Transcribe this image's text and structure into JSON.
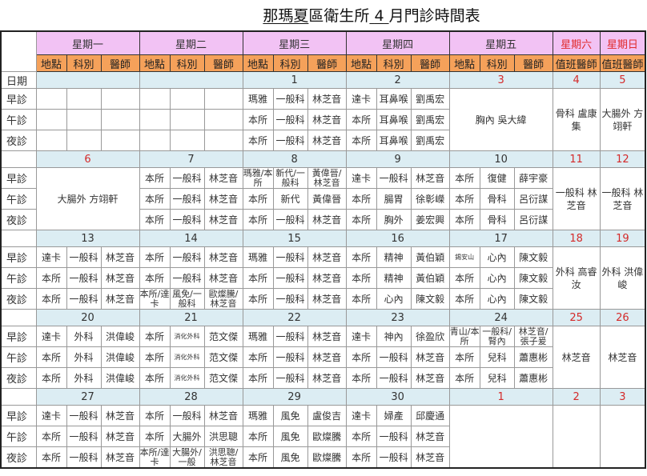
{
  "title": {
    "prefix": "那瑪夏",
    "mid": "區衛生所",
    "month": "4",
    "suffix": "月門診時間表"
  },
  "colors": {
    "day_header": "#f2c2f4",
    "sub_header": "#f5a15a",
    "date_row": "#dcedf3",
    "weekend_red": "#e02b2b"
  },
  "days": [
    {
      "label": "星期一",
      "weekend": false
    },
    {
      "label": "星期二",
      "weekend": false
    },
    {
      "label": "星期三",
      "weekend": false
    },
    {
      "label": "星期四",
      "weekend": false
    },
    {
      "label": "星期五",
      "weekend": false
    },
    {
      "label": "星期六",
      "weekend": true
    },
    {
      "label": "星期日",
      "weekend": true
    }
  ],
  "sub_headers": {
    "location": "地點",
    "dept": "科別",
    "doctor": "醫師",
    "duty": "值班醫師"
  },
  "row_labels": {
    "date": "日期",
    "slots": [
      "早診",
      "午診",
      "夜診"
    ]
  },
  "weeks": [
    {
      "days": [
        {
          "date": "",
          "slots": [
            [
              "",
              "",
              ""
            ],
            [
              "",
              "",
              ""
            ],
            [
              "",
              "",
              ""
            ]
          ]
        },
        {
          "date": "",
          "slots": [
            [
              "",
              "",
              ""
            ],
            [
              "",
              "",
              ""
            ],
            [
              "",
              "",
              ""
            ]
          ]
        },
        {
          "date": "1",
          "slots": [
            [
              "瑪雅",
              "一般科",
              "林芝音"
            ],
            [
              "本所",
              "一般科",
              "林芝音"
            ],
            [
              "本所",
              "一般科",
              "林芝音"
            ]
          ]
        },
        {
          "date": "2",
          "slots": [
            [
              "達卡",
              "耳鼻喉",
              "劉禹宏"
            ],
            [
              "本所",
              "耳鼻喉",
              "劉禹宏"
            ],
            [
              "本所",
              "耳鼻喉",
              "劉禹宏"
            ]
          ]
        },
        {
          "date": "3",
          "red": true,
          "merged": "胸內 吳大緯"
        },
        {
          "date": "4",
          "red": true,
          "merged": "骨科 盧康集"
        },
        {
          "date": "5",
          "red": true,
          "merged": "大腸外 方翊軒"
        }
      ]
    },
    {
      "days": [
        {
          "date": "6",
          "red": true,
          "merged": "大腸外 方翊軒"
        },
        {
          "date": "7",
          "slots": [
            [
              "本所",
              "一般科",
              "林芝音"
            ],
            [
              "本所",
              "一般科",
              "林芝音"
            ],
            [
              "本所",
              "一般科",
              "林芝音"
            ]
          ]
        },
        {
          "date": "8",
          "slots": [
            [
              "瑪雅/本所",
              "新代/一般科",
              "黃偉晉/林芝音"
            ],
            [
              "本所",
              "新代",
              "黃偉晉"
            ],
            [
              "本所",
              "一般科",
              "林芝音"
            ]
          ]
        },
        {
          "date": "9",
          "slots": [
            [
              "達卡",
              "一般科",
              "林芝音"
            ],
            [
              "本所",
              "腸胃",
              "徐彰嶸"
            ],
            [
              "本所",
              "胸外",
              "姜宏興"
            ]
          ]
        },
        {
          "date": "10",
          "slots": [
            [
              "本所",
              "復健",
              "薛宇豪"
            ],
            [
              "本所",
              "骨科",
              "呂衍謀"
            ],
            [
              "本所",
              "骨科",
              "呂衍謀"
            ]
          ]
        },
        {
          "date": "11",
          "red": true,
          "merged": "一般科 林芝音"
        },
        {
          "date": "12",
          "red": true,
          "merged": "一般科 林芝音"
        }
      ]
    },
    {
      "days": [
        {
          "date": "13",
          "slots": [
            [
              "達卡",
              "一般科",
              "林芝音"
            ],
            [
              "本所",
              "一般科",
              "林芝音"
            ],
            [
              "本所",
              "一般科",
              "林芝音"
            ]
          ]
        },
        {
          "date": "14",
          "slots": [
            [
              "本所",
              "一般科",
              "林芝音"
            ],
            [
              "本所",
              "一般科",
              "林芝音"
            ],
            [
              "本所/達卡",
              "風免/一般科",
              "歐燦騰/林芝音"
            ]
          ]
        },
        {
          "date": "15",
          "slots": [
            [
              "瑪雅",
              "一般科",
              "林芝音"
            ],
            [
              "本所",
              "一般科",
              "林芝音"
            ],
            [
              "本所",
              "一般科",
              "林芝音"
            ]
          ]
        },
        {
          "date": "16",
          "slots": [
            [
              "本所",
              "精神",
              "黃伯穎"
            ],
            [
              "本所",
              "精神",
              "黃伯穎"
            ],
            [
              "本所",
              "心內",
              "陳文毅"
            ]
          ]
        },
        {
          "date": "17",
          "slots": [
            [
              "錫安山",
              "心內",
              "陳文毅"
            ],
            [
              "本所",
              "心內",
              "陳文毅"
            ],
            [
              "本所",
              "心內",
              "陳文毅"
            ]
          ]
        },
        {
          "date": "18",
          "red": true,
          "merged": "外科 高睿汝"
        },
        {
          "date": "19",
          "red": true,
          "merged": "外科 洪偉峻"
        }
      ]
    },
    {
      "days": [
        {
          "date": "20",
          "slots": [
            [
              "達卡",
              "外科",
              "洪偉峻"
            ],
            [
              "本所",
              "外科",
              "洪偉峻"
            ],
            [
              "本所",
              "外科",
              "洪偉峻"
            ]
          ]
        },
        {
          "date": "21",
          "slots": [
            [
              "本所",
              "消化外科",
              "范文傑"
            ],
            [
              "本所",
              "消化外科",
              "范文傑"
            ],
            [
              "本所",
              "消化外科",
              "范文傑"
            ]
          ]
        },
        {
          "date": "22",
          "slots": [
            [
              "瑪雅",
              "一般科",
              "林芝音"
            ],
            [
              "本所",
              "一般科",
              "林芝音"
            ],
            [
              "本所",
              "一般科",
              "林芝音"
            ]
          ]
        },
        {
          "date": "23",
          "slots": [
            [
              "達卡",
              "神內",
              "徐盈欣"
            ],
            [
              "本所",
              "一般科",
              "林芝音"
            ],
            [
              "本所",
              "一般科",
              "林芝音"
            ]
          ]
        },
        {
          "date": "24",
          "slots": [
            [
              "青山/本所",
              "一般科/腎內",
              "林芝音/張子爰"
            ],
            [
              "本所",
              "兒科",
              "蕭惠彬"
            ],
            [
              "本所",
              "兒科",
              "蕭惠彬"
            ]
          ]
        },
        {
          "date": "25",
          "red": true,
          "merged": "林芝音"
        },
        {
          "date": "26",
          "red": true,
          "merged": "林芝音"
        }
      ]
    },
    {
      "days": [
        {
          "date": "27",
          "slots": [
            [
              "達卡",
              "一般科",
              "林芝音"
            ],
            [
              "本所",
              "一般科",
              "林芝音"
            ],
            [
              "本所",
              "一般科",
              "林芝音"
            ]
          ]
        },
        {
          "date": "28",
          "slots": [
            [
              "本所",
              "一般科",
              "林芝音"
            ],
            [
              "本所",
              "大腸外",
              "洪思聰"
            ],
            [
              "本所/達卡",
              "大腸外/一般",
              "洪思聰/林芝音"
            ]
          ]
        },
        {
          "date": "29",
          "slots": [
            [
              "瑪雅",
              "風免",
              "盧俊吉"
            ],
            [
              "本所",
              "風免",
              "歐燦騰"
            ],
            [
              "本所",
              "風免",
              "歐燦騰"
            ]
          ]
        },
        {
          "date": "30",
          "slots": [
            [
              "達卡",
              "婦產",
              "邱慶通"
            ],
            [
              "本所",
              "一般科",
              "林芝音"
            ],
            [
              "本所",
              "一般科",
              "林芝音"
            ]
          ]
        },
        {
          "date": "1",
          "red": true,
          "merged": ""
        },
        {
          "date": "2",
          "red": true,
          "merged": ""
        },
        {
          "date": "3",
          "red": true,
          "merged": ""
        }
      ]
    }
  ]
}
